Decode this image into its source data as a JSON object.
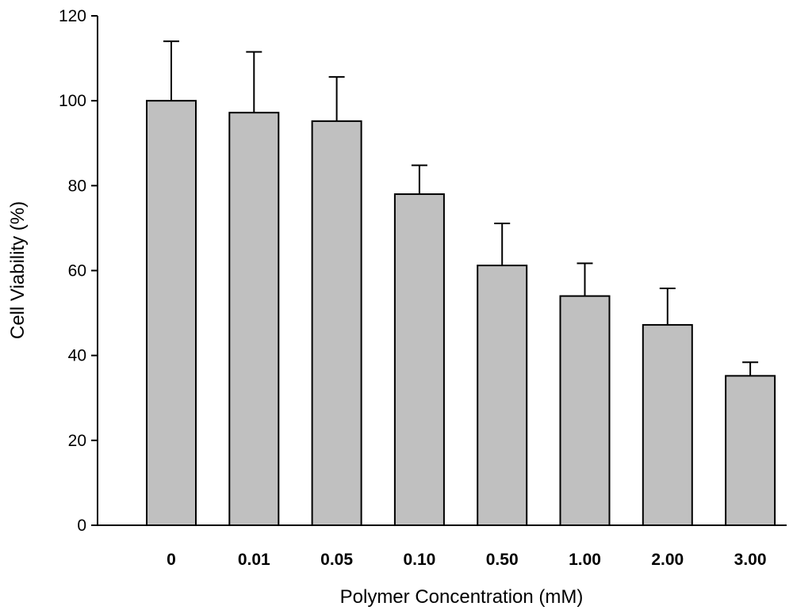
{
  "chart_data": {
    "type": "bar",
    "xlabel": "Polymer Concentration (mM)",
    "ylabel": "Cell Viability (%)",
    "ylim": [
      0,
      120
    ],
    "yticks": [
      0,
      20,
      40,
      60,
      80,
      100,
      120
    ],
    "categories": [
      "0",
      "0.01",
      "0.05",
      "0.10",
      "0.50",
      "1.00",
      "2.00",
      "3.00"
    ],
    "values": [
      100,
      97.2,
      95.2,
      78,
      61.2,
      54,
      47.2,
      35.2
    ],
    "error_plus": [
      14,
      14.3,
      10.4,
      6.8,
      9.9,
      7.7,
      8.6,
      3.2
    ],
    "bar_color": "#c0c0c0",
    "grid": false,
    "legend": "none"
  }
}
